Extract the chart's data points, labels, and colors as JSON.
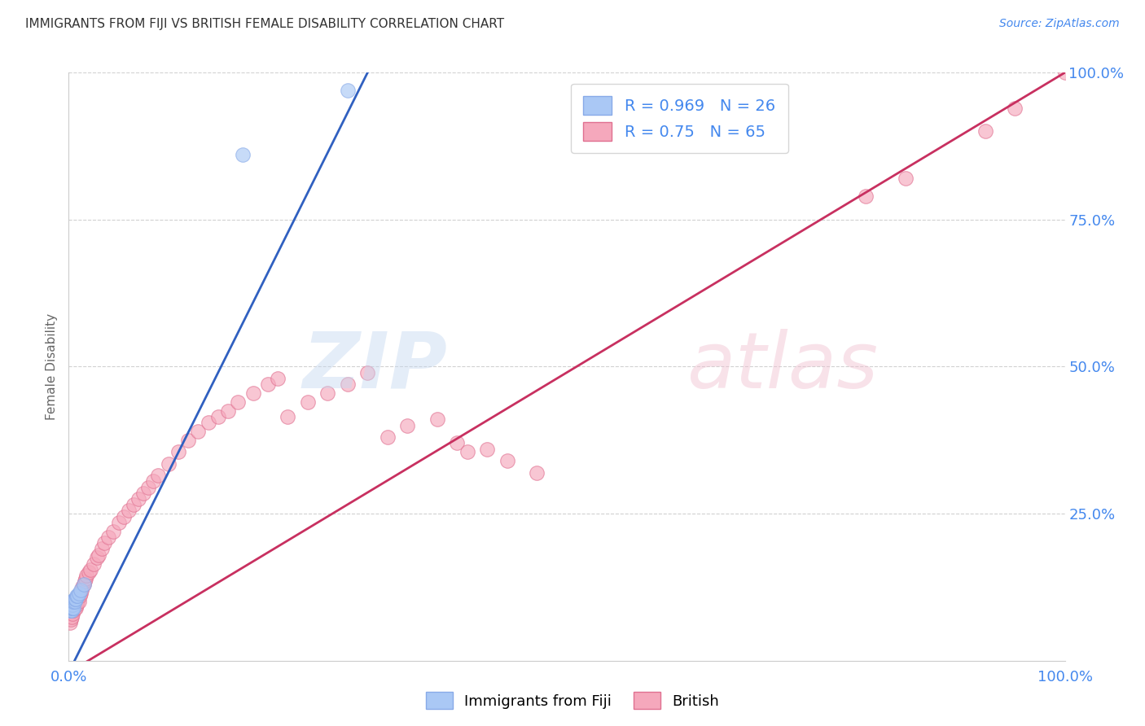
{
  "title": "IMMIGRANTS FROM FIJI VS BRITISH FEMALE DISABILITY CORRELATION CHART",
  "source": "Source: ZipAtlas.com",
  "ylabel": "Female Disability",
  "fiji_R": 0.969,
  "fiji_N": 26,
  "british_R": 0.75,
  "british_N": 65,
  "fiji_color": "#aac8f5",
  "fiji_edge_color": "#88aae8",
  "fiji_line_color": "#3060c0",
  "british_color": "#f5a8bc",
  "british_edge_color": "#e07090",
  "british_line_color": "#c83060",
  "background_color": "#ffffff",
  "grid_color": "#cccccc",
  "axis_label_color": "#4488ee",
  "title_color": "#333333",
  "xlim": [
    0,
    1
  ],
  "ylim": [
    0,
    1
  ],
  "fiji_x": [
    0.001,
    0.001,
    0.001,
    0.002,
    0.002,
    0.002,
    0.002,
    0.003,
    0.003,
    0.003,
    0.003,
    0.004,
    0.004,
    0.004,
    0.005,
    0.005,
    0.006,
    0.006,
    0.007,
    0.008,
    0.009,
    0.01,
    0.012,
    0.015,
    0.175,
    0.28
  ],
  "fiji_y": [
    0.085,
    0.09,
    0.095,
    0.085,
    0.09,
    0.095,
    0.1,
    0.085,
    0.09,
    0.095,
    0.1,
    0.09,
    0.095,
    0.1,
    0.09,
    0.1,
    0.1,
    0.105,
    0.105,
    0.11,
    0.11,
    0.115,
    0.12,
    0.13,
    0.86,
    0.97
  ],
  "british_x": [
    0.001,
    0.002,
    0.003,
    0.004,
    0.005,
    0.006,
    0.007,
    0.008,
    0.009,
    0.01,
    0.011,
    0.012,
    0.013,
    0.014,
    0.015,
    0.016,
    0.017,
    0.018,
    0.02,
    0.022,
    0.025,
    0.028,
    0.03,
    0.033,
    0.036,
    0.04,
    0.045,
    0.05,
    0.055,
    0.06,
    0.065,
    0.07,
    0.075,
    0.08,
    0.085,
    0.09,
    0.1,
    0.11,
    0.12,
    0.13,
    0.14,
    0.15,
    0.16,
    0.17,
    0.185,
    0.2,
    0.21,
    0.22,
    0.24,
    0.26,
    0.28,
    0.3,
    0.32,
    0.34,
    0.37,
    0.39,
    0.4,
    0.42,
    0.44,
    0.47,
    0.8,
    0.84,
    0.92,
    0.95,
    1.0
  ],
  "british_y": [
    0.065,
    0.07,
    0.075,
    0.08,
    0.085,
    0.09,
    0.09,
    0.095,
    0.1,
    0.1,
    0.11,
    0.115,
    0.12,
    0.125,
    0.13,
    0.135,
    0.14,
    0.145,
    0.15,
    0.155,
    0.165,
    0.175,
    0.18,
    0.19,
    0.2,
    0.21,
    0.22,
    0.235,
    0.245,
    0.255,
    0.265,
    0.275,
    0.285,
    0.295,
    0.305,
    0.315,
    0.335,
    0.355,
    0.375,
    0.39,
    0.405,
    0.415,
    0.425,
    0.44,
    0.455,
    0.47,
    0.48,
    0.415,
    0.44,
    0.455,
    0.47,
    0.49,
    0.38,
    0.4,
    0.41,
    0.37,
    0.355,
    0.36,
    0.34,
    0.32,
    0.79,
    0.82,
    0.9,
    0.94,
    1.0
  ],
  "fiji_line_x0": 0.0,
  "fiji_line_y0": -0.02,
  "fiji_line_x1": 0.3,
  "fiji_line_y1": 1.0,
  "british_line_x0": 0.0,
  "british_line_y0": -0.02,
  "british_line_x1": 1.0,
  "british_line_y1": 1.0
}
